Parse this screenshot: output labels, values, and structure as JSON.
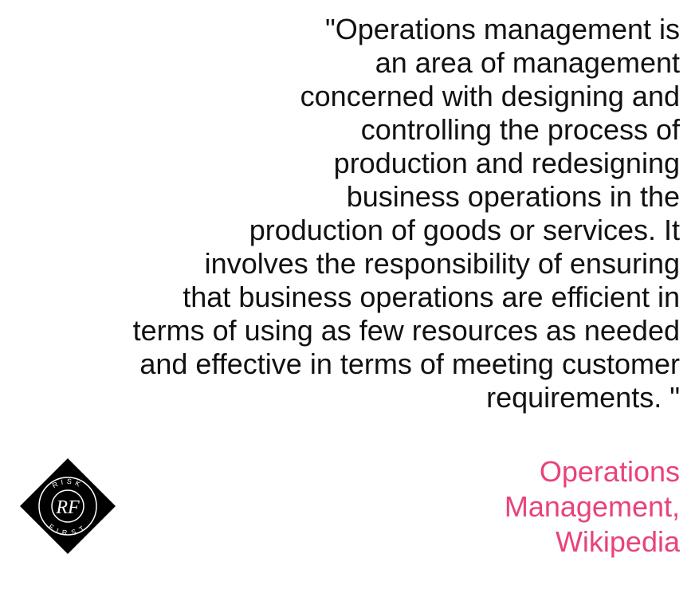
{
  "quote": {
    "lines": [
      "\"Operations management is",
      "an area of management",
      "concerned with designing and",
      "controlling the process of",
      "production and redesigning",
      "business operations in the",
      "production of goods or services. It",
      "involves the responsibility of ensuring",
      "that business operations are efficient in",
      "terms of using as few resources as needed",
      "and effective in terms of meeting customer",
      "requirements. \""
    ]
  },
  "attribution": {
    "lines": [
      "Operations",
      "Management,",
      "Wikipedia"
    ]
  },
  "logo": {
    "top_text": "RISK",
    "bottom_text": "FIRST",
    "monogram": "RF"
  },
  "colors": {
    "quote_text": "#111111",
    "attribution_text": "#e8437a",
    "logo_background": "#000000"
  }
}
